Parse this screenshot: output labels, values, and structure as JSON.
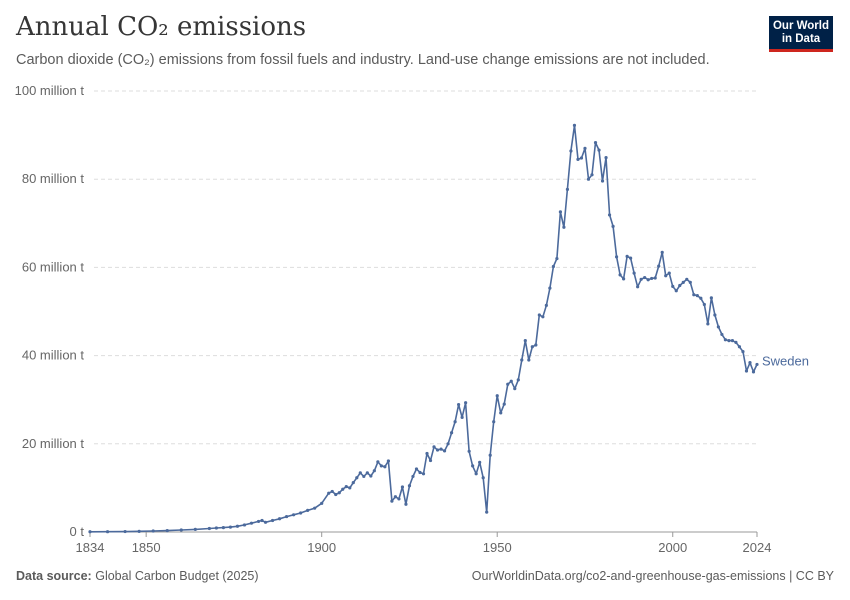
{
  "header": {
    "title": "Annual CO₂ emissions",
    "subtitle": "Carbon dioxide (CO₂) emissions from fossil fuels and industry. Land-use change emissions are not included.",
    "logo_line1": "Our World",
    "logo_line2": "in Data"
  },
  "footer": {
    "source_label": "Data source:",
    "source_value": "Global Carbon Budget (2025)",
    "url": "OurWorldinData.org/co2-and-greenhouse-gas-emissions | CC BY"
  },
  "colors": {
    "series": "#4c6a9c",
    "grid": "#dddddd",
    "logo_bg": "#002147",
    "logo_accent": "#ce261e"
  },
  "chart_data": {
    "type": "line",
    "title": "Annual CO₂ emissions",
    "xlim": [
      1834,
      2024
    ],
    "ylim": [
      0,
      100
    ],
    "x_ticks": [
      {
        "value": 1834,
        "label": "1834"
      },
      {
        "value": 1850,
        "label": "1850"
      },
      {
        "value": 1900,
        "label": "1900"
      },
      {
        "value": 1950,
        "label": "1950"
      },
      {
        "value": 2000,
        "label": "2000"
      },
      {
        "value": 2024,
        "label": "2024"
      }
    ],
    "y_ticks": [
      {
        "value": 0,
        "label": "0 t"
      },
      {
        "value": 20,
        "label": "20 million t"
      },
      {
        "value": 40,
        "label": "40 million t"
      },
      {
        "value": 60,
        "label": "60 million t"
      },
      {
        "value": 80,
        "label": "80 million t"
      },
      {
        "value": 100,
        "label": "100 million t"
      }
    ],
    "grid": true,
    "legend": "right-end label",
    "series": [
      {
        "name": "Sweden",
        "points": [
          [
            1834,
            0.05
          ],
          [
            1839,
            0.07
          ],
          [
            1844,
            0.1
          ],
          [
            1848,
            0.15
          ],
          [
            1852,
            0.22
          ],
          [
            1856,
            0.32
          ],
          [
            1860,
            0.45
          ],
          [
            1864,
            0.6
          ],
          [
            1868,
            0.8
          ],
          [
            1870,
            0.9
          ],
          [
            1872,
            1.0
          ],
          [
            1874,
            1.1
          ],
          [
            1876,
            1.3
          ],
          [
            1878,
            1.6
          ],
          [
            1880,
            2.0
          ],
          [
            1882,
            2.4
          ],
          [
            1883,
            2.6
          ],
          [
            1884,
            2.2
          ],
          [
            1886,
            2.6
          ],
          [
            1888,
            3.0
          ],
          [
            1890,
            3.5
          ],
          [
            1892,
            3.9
          ],
          [
            1894,
            4.3
          ],
          [
            1896,
            4.9
          ],
          [
            1898,
            5.4
          ],
          [
            1900,
            6.5
          ],
          [
            1902,
            8.8
          ],
          [
            1903,
            9.2
          ],
          [
            1904,
            8.5
          ],
          [
            1905,
            8.9
          ],
          [
            1906,
            9.7
          ],
          [
            1907,
            10.3
          ],
          [
            1908,
            10.0
          ],
          [
            1909,
            11.2
          ],
          [
            1910,
            12.3
          ],
          [
            1911,
            13.4
          ],
          [
            1912,
            12.6
          ],
          [
            1913,
            13.4
          ],
          [
            1914,
            12.7
          ],
          [
            1915,
            13.9
          ],
          [
            1916,
            15.9
          ],
          [
            1917,
            15.0
          ],
          [
            1918,
            14.8
          ],
          [
            1919,
            16.1
          ],
          [
            1920,
            7.0
          ],
          [
            1921,
            8.0
          ],
          [
            1922,
            7.5
          ],
          [
            1923,
            10.2
          ],
          [
            1924,
            6.3
          ],
          [
            1925,
            10.5
          ],
          [
            1926,
            12.6
          ],
          [
            1927,
            14.3
          ],
          [
            1928,
            13.5
          ],
          [
            1929,
            13.2
          ],
          [
            1930,
            17.8
          ],
          [
            1931,
            16.2
          ],
          [
            1932,
            19.3
          ],
          [
            1933,
            18.6
          ],
          [
            1934,
            18.8
          ],
          [
            1935,
            18.4
          ],
          [
            1936,
            20.0
          ],
          [
            1937,
            22.5
          ],
          [
            1938,
            25.0
          ],
          [
            1939,
            28.9
          ],
          [
            1940,
            26.0
          ],
          [
            1941,
            29.3
          ],
          [
            1942,
            18.3
          ],
          [
            1943,
            15.0
          ],
          [
            1944,
            13.2
          ],
          [
            1945,
            15.8
          ],
          [
            1946,
            12.3
          ],
          [
            1947,
            4.5
          ],
          [
            1948,
            17.4
          ],
          [
            1949,
            25.0
          ],
          [
            1950,
            30.9
          ],
          [
            1951,
            27.0
          ],
          [
            1952,
            29.0
          ],
          [
            1953,
            33.5
          ],
          [
            1954,
            34.2
          ],
          [
            1955,
            32.5
          ],
          [
            1956,
            34.5
          ],
          [
            1957,
            39.0
          ],
          [
            1958,
            43.4
          ],
          [
            1959,
            39.0
          ],
          [
            1960,
            42.0
          ],
          [
            1961,
            42.4
          ],
          [
            1962,
            49.2
          ],
          [
            1963,
            48.8
          ],
          [
            1964,
            51.4
          ],
          [
            1965,
            55.3
          ],
          [
            1966,
            60.2
          ],
          [
            1967,
            62.0
          ],
          [
            1968,
            72.6
          ],
          [
            1969,
            69.1
          ],
          [
            1970,
            77.7
          ],
          [
            1971,
            86.4
          ],
          [
            1972,
            92.2
          ],
          [
            1973,
            84.5
          ],
          [
            1974,
            84.8
          ],
          [
            1975,
            87.0
          ],
          [
            1976,
            80.0
          ],
          [
            1977,
            81.0
          ],
          [
            1978,
            88.3
          ],
          [
            1979,
            86.6
          ],
          [
            1980,
            79.6
          ],
          [
            1981,
            84.9
          ],
          [
            1982,
            71.9
          ],
          [
            1983,
            69.3
          ],
          [
            1984,
            62.4
          ],
          [
            1985,
            58.3
          ],
          [
            1986,
            57.4
          ],
          [
            1987,
            62.5
          ],
          [
            1988,
            62.1
          ],
          [
            1989,
            58.7
          ],
          [
            1990,
            55.6
          ],
          [
            1991,
            57.3
          ],
          [
            1992,
            57.7
          ],
          [
            1993,
            57.2
          ],
          [
            1994,
            57.5
          ],
          [
            1995,
            57.6
          ],
          [
            1996,
            60.3
          ],
          [
            1997,
            63.4
          ],
          [
            1998,
            58.1
          ],
          [
            1999,
            58.7
          ],
          [
            2000,
            55.7
          ],
          [
            2001,
            54.7
          ],
          [
            2002,
            55.9
          ],
          [
            2003,
            56.6
          ],
          [
            2004,
            57.3
          ],
          [
            2005,
            56.6
          ],
          [
            2006,
            53.8
          ],
          [
            2007,
            53.6
          ],
          [
            2008,
            53.0
          ],
          [
            2009,
            51.6
          ],
          [
            2010,
            47.2
          ],
          [
            2011,
            53.1
          ],
          [
            2012,
            49.2
          ],
          [
            2013,
            46.5
          ],
          [
            2014,
            44.8
          ],
          [
            2015,
            43.6
          ],
          [
            2016,
            43.4
          ],
          [
            2017,
            43.4
          ],
          [
            2018,
            43.0
          ],
          [
            2019,
            42.0
          ],
          [
            2020,
            40.9
          ],
          [
            2021,
            36.5
          ],
          [
            2022,
            38.4
          ],
          [
            2023,
            36.3
          ],
          [
            2024,
            38.0
          ]
        ]
      }
    ]
  }
}
